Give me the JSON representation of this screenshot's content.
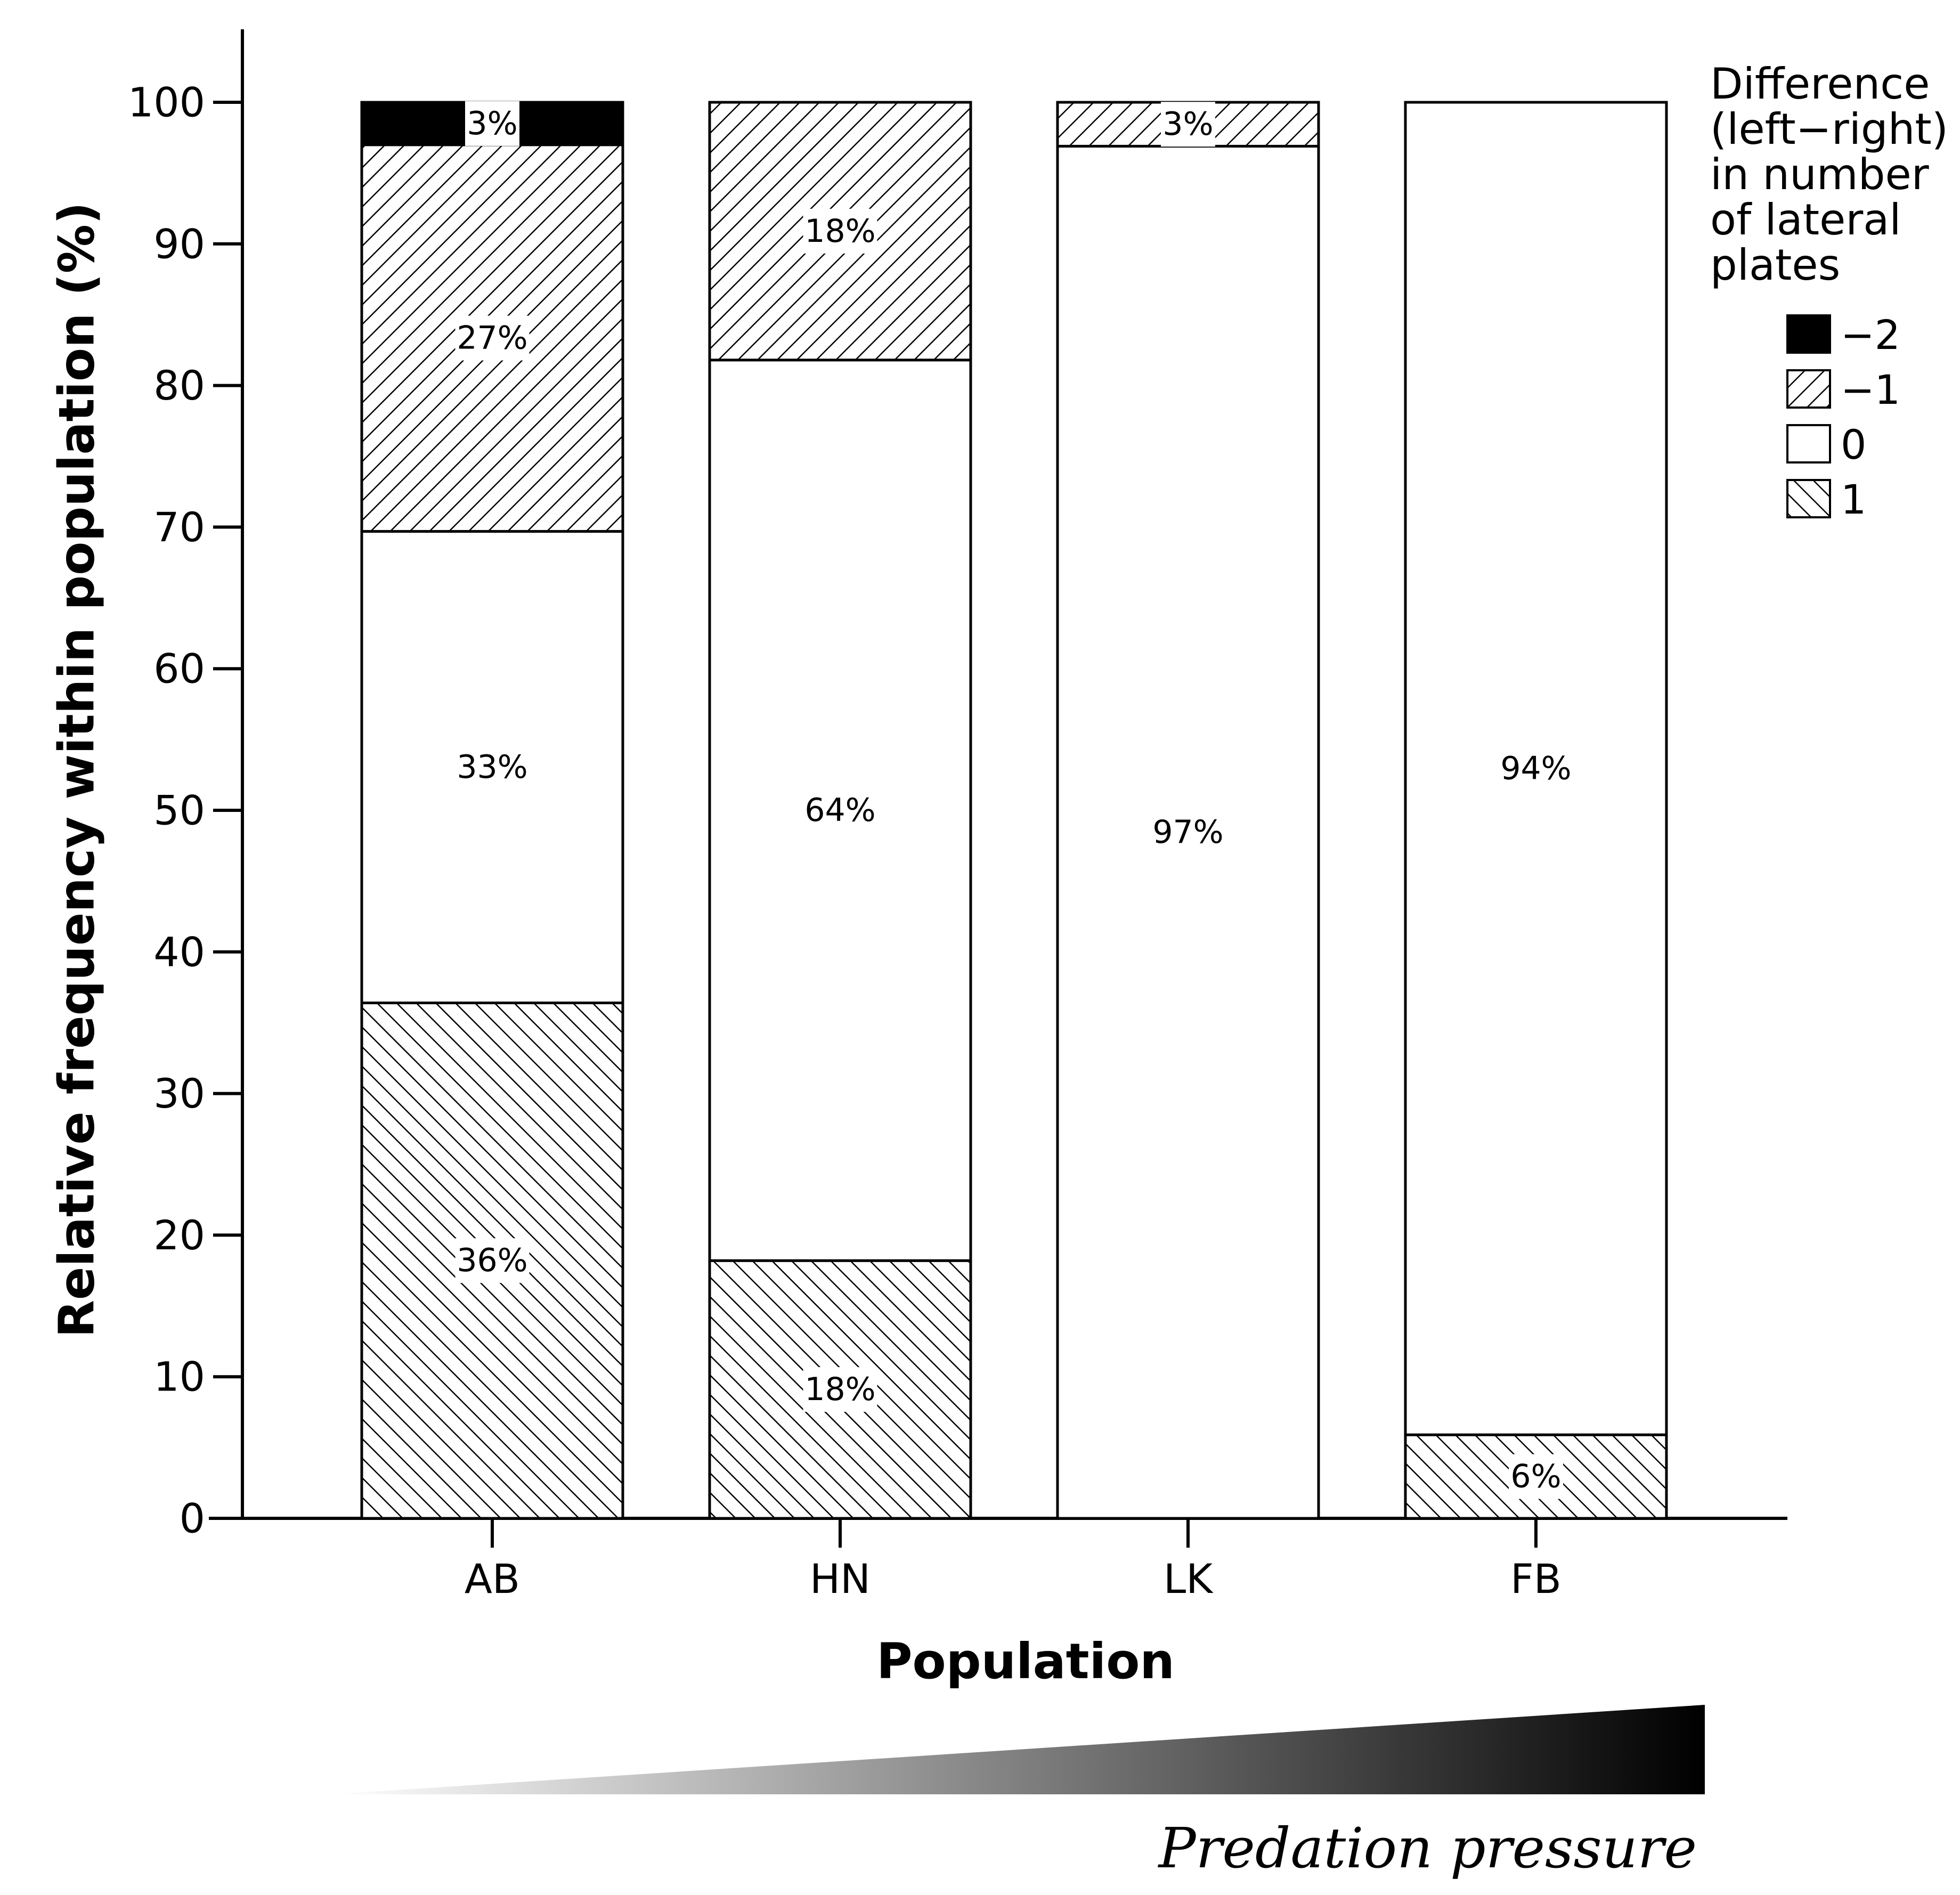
{
  "chart_data": {
    "type": "bar",
    "stacked": true,
    "categories": [
      "AB",
      "HN",
      "LK",
      "FB"
    ],
    "series": [
      {
        "name": "1",
        "pattern": "hatch-back",
        "values": [
          36.4,
          18.2,
          0,
          5.9
        ]
      },
      {
        "name": "0",
        "pattern": "white",
        "values": [
          33.3,
          63.6,
          96.9,
          94.1
        ]
      },
      {
        "name": "-1",
        "pattern": "hatch-forward",
        "values": [
          27.3,
          18.2,
          3.1,
          0
        ]
      },
      {
        "name": "-2",
        "pattern": "black",
        "values": [
          3.0,
          0,
          0,
          0
        ]
      }
    ],
    "data_labels": [
      [
        "36%",
        "18%",
        null,
        "6%"
      ],
      [
        "33%",
        "64%",
        "97%",
        "94%"
      ],
      [
        "27%",
        "18%",
        "3%",
        null
      ],
      [
        "3%",
        null,
        null,
        null
      ]
    ],
    "xlabel": "Population",
    "ylabel": "Relative frequency within population (%)",
    "ylim": [
      0,
      100
    ],
    "yticks": [
      "0",
      "10",
      "20",
      "30",
      "40",
      "50",
      "60",
      "70",
      "80",
      "90",
      "100"
    ],
    "legend": {
      "title_lines": [
        "Difference",
        "(left−right)",
        "in number",
        "of lateral",
        "plates"
      ],
      "entries": [
        "−2",
        "−1",
        "0",
        "1"
      ],
      "placement": "top-right"
    },
    "annotation": {
      "text": "Predation pressure",
      "gradient_from": "#ffffff",
      "gradient_to": "#000000"
    }
  }
}
